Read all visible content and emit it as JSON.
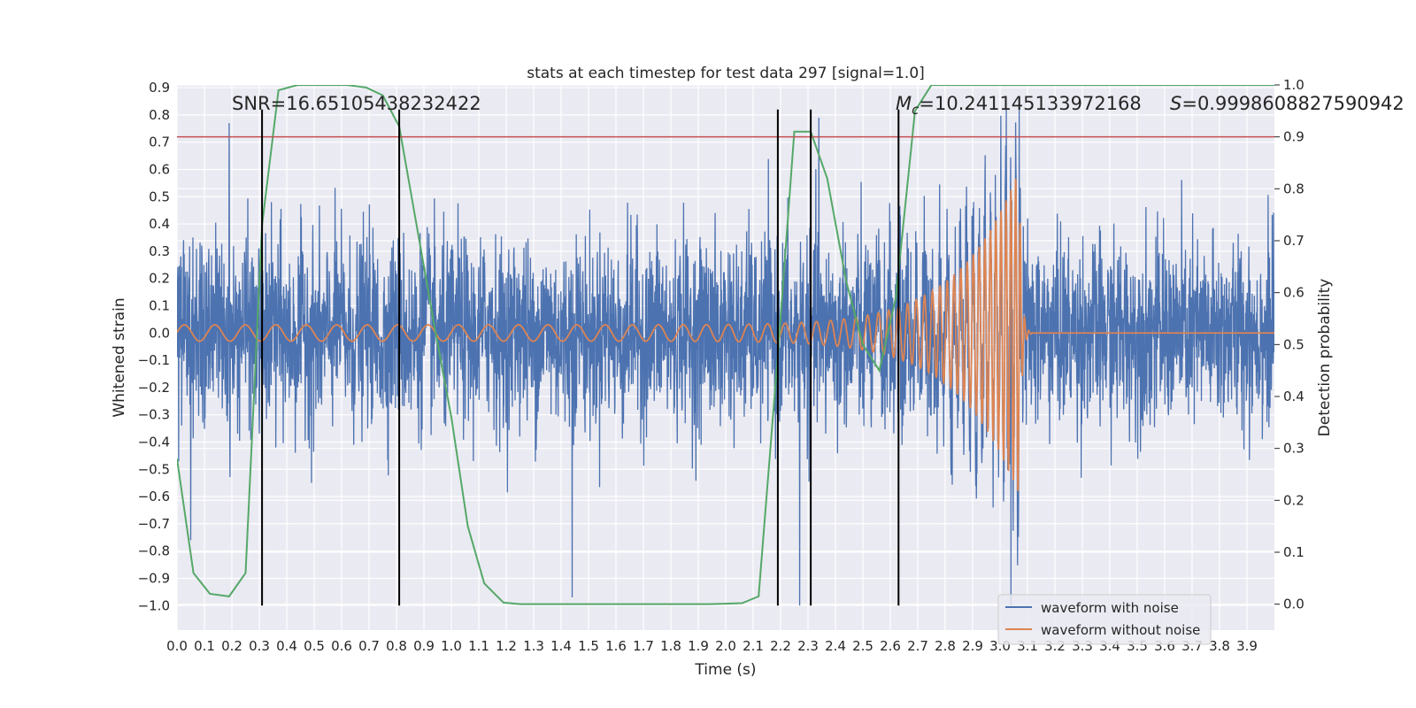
{
  "chart_data": {
    "type": "line",
    "title": "stats at each timestep for test data 297 [signal=1.0]",
    "xlabel": "Time (s)",
    "ylabel": "Whitened strain",
    "y2label": "Detection probability",
    "xlim": [
      0.0,
      4.0
    ],
    "ylim": [
      -1.09,
      0.91
    ],
    "y2lim": [
      -0.05,
      1.0
    ],
    "grid": true,
    "legend_position": "lower-right",
    "x_ticks": [
      "0.0",
      "0.1",
      "0.2",
      "0.3",
      "0.4",
      "0.5",
      "0.6",
      "0.7",
      "0.8",
      "0.9",
      "1.0",
      "1.1",
      "1.2",
      "1.3",
      "1.4",
      "1.5",
      "1.6",
      "1.7",
      "1.8",
      "1.9",
      "2.0",
      "2.1",
      "2.2",
      "2.3",
      "2.4",
      "2.5",
      "2.6",
      "2.7",
      "2.8",
      "2.9",
      "3.0",
      "3.1",
      "3.2",
      "3.3",
      "3.4",
      "3.5",
      "3.6",
      "3.7",
      "3.8",
      "3.9"
    ],
    "y_ticks": [
      "0.9",
      "0.8",
      "0.7",
      "0.6",
      "0.5",
      "0.4",
      "0.3",
      "0.2",
      "0.1",
      "0.0",
      "−0.1",
      "−0.2",
      "−0.3",
      "−0.4",
      "−0.5",
      "−0.6",
      "−0.7",
      "−0.8",
      "−0.9",
      "−1.0"
    ],
    "y2_ticks": [
      "1.0",
      "0.9",
      "0.8",
      "0.7",
      "0.6",
      "0.5",
      "0.4",
      "0.3",
      "0.2",
      "0.1",
      "0.0"
    ],
    "annotations": {
      "snr": "SNR=16.65105438232422",
      "mc_symbol": "M",
      "mc_sub": "c",
      "mc_value": "=10.241145133972168",
      "s_symbol": "S",
      "s_value": "=0.9998608827590942"
    },
    "threshold_y2": 0.9,
    "threshold_color": "#c44e52",
    "vertical_lines_x": [
      0.31,
      0.81,
      2.19,
      2.31,
      2.63
    ],
    "vertical_lines_range_y": [
      -1.0,
      0.82
    ],
    "series": [
      {
        "name": "waveform with noise",
        "color": "#4c72b0",
        "noise_std": 0.17,
        "noise_peaks": [
          {
            "x": 0.19,
            "y": 0.77
          },
          {
            "x": 0.36,
            "y": -0.42
          },
          {
            "x": 0.49,
            "y": -0.55
          },
          {
            "x": 1.44,
            "y": -0.97
          },
          {
            "x": 2.27,
            "y": -1.0
          },
          {
            "x": 3.07,
            "y": 0.82
          },
          {
            "x": 3.04,
            "y": -1.0
          },
          {
            "x": 2.34,
            "y": 0.79
          },
          {
            "x": 0.05,
            "y": -0.76
          }
        ]
      },
      {
        "name": "waveform without noise",
        "color": "#dd8452",
        "chirp": {
          "amp_start": 0.03,
          "amp_peak": 0.6,
          "merger_time": 3.07,
          "f_start": 9,
          "f_end": 60
        }
      },
      {
        "name": "detection probability",
        "color": "#55a868",
        "axis": "right",
        "x": [
          0.0,
          0.06,
          0.12,
          0.19,
          0.25,
          0.31,
          0.37,
          0.44,
          0.5,
          0.56,
          0.62,
          0.69,
          0.75,
          0.81,
          0.87,
          0.94,
          1.0,
          1.06,
          1.12,
          1.19,
          1.25,
          1.31,
          1.37,
          1.44,
          1.5,
          1.56,
          1.62,
          1.69,
          1.75,
          1.81,
          1.87,
          1.94,
          2.0,
          2.06,
          2.12,
          2.19,
          2.25,
          2.31,
          2.37,
          2.44,
          2.5,
          2.56,
          2.62,
          2.69,
          2.75,
          2.81,
          2.87,
          2.94,
          3.0,
          3.06,
          3.12,
          3.19,
          3.25,
          3.31,
          3.37,
          3.44,
          3.5,
          3.56,
          3.62,
          3.69,
          3.75,
          3.81,
          3.87,
          3.94,
          4.0
        ],
        "y": [
          0.28,
          0.06,
          0.02,
          0.015,
          0.06,
          0.73,
          0.99,
          1.0,
          1.0,
          1.0,
          1.0,
          0.995,
          0.98,
          0.92,
          0.74,
          0.53,
          0.36,
          0.15,
          0.04,
          0.003,
          0.0,
          0.0,
          0.0,
          0.0,
          0.0,
          0.0,
          0.0,
          0.0,
          0.0,
          0.0,
          0.0,
          0.0,
          0.001,
          0.002,
          0.015,
          0.48,
          0.91,
          0.91,
          0.82,
          0.62,
          0.5,
          0.45,
          0.59,
          0.95,
          1.0,
          1.0,
          1.0,
          1.0,
          1.0,
          1.0,
          1.0,
          1.0,
          1.0,
          1.0,
          1.0,
          1.0,
          1.0,
          1.0,
          1.0,
          1.0,
          1.0,
          1.0,
          1.0,
          1.0,
          1.0
        ]
      }
    ]
  }
}
